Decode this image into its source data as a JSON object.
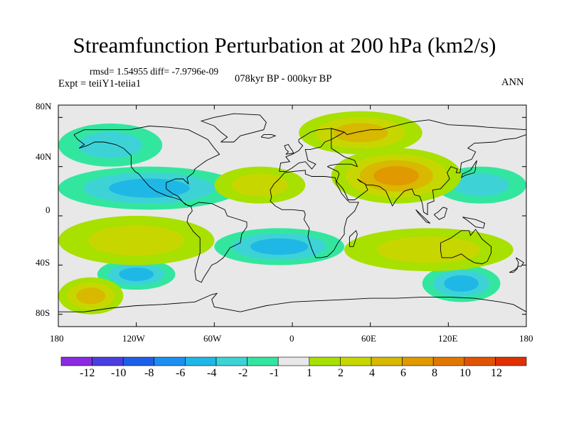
{
  "title": "Streamfunction Perturbation at 200 hPa (km2/s)",
  "stats_text": "rmsd= 1.54955 diff= -7.9796e-09",
  "experiment_text": "Expt = teiiY1-teiia1",
  "period_text": "078kyr BP - 000kyr BP",
  "season_text": "ANN",
  "lat_labels": [
    "80N",
    "40N",
    "0",
    "40S",
    "80S"
  ],
  "lon_labels": [
    "180",
    "120W",
    "60W",
    "0",
    "60E",
    "120E",
    "180"
  ],
  "colorbar": {
    "colors": [
      "#8a2be2",
      "#4b3ee0",
      "#1e5ee8",
      "#1e8ff0",
      "#1fb8e6",
      "#3dd3d6",
      "#33e6a0",
      "#e8e8e8",
      "#a8e000",
      "#c8d600",
      "#d8b800",
      "#e09a00",
      "#e07800",
      "#e05400",
      "#e03000"
    ],
    "labels": [
      "-12",
      "-10",
      "-8",
      "-6",
      "-4",
      "-2",
      "-1",
      "1",
      "2",
      "4",
      "6",
      "8",
      "10",
      "12"
    ]
  },
  "chart_data": {
    "type": "heatmap",
    "title": "Streamfunction Perturbation at 200 hPa (km2/s)",
    "xlim": [
      -180,
      180
    ],
    "ylim": [
      -90,
      90
    ],
    "x_ticks": [
      -180,
      -120,
      -60,
      0,
      60,
      120,
      180
    ],
    "x_tick_labels": [
      "180",
      "120W",
      "60W",
      "0",
      "60E",
      "120E",
      "180"
    ],
    "y_ticks": [
      80,
      40,
      0,
      -40,
      -80
    ],
    "y_tick_labels": [
      "80N",
      "40N",
      "0",
      "40S",
      "80S"
    ],
    "contour_levels": [
      -12,
      -10,
      -8,
      -6,
      -4,
      -2,
      -1,
      1,
      2,
      4,
      6,
      8,
      10,
      12
    ],
    "features": [
      {
        "lon": [
          -180,
          -40
        ],
        "lat": [
          5,
          40
        ],
        "sign": "negative",
        "peak": -4
      },
      {
        "lon": [
          -180,
          -100
        ],
        "lat": [
          40,
          75
        ],
        "sign": "negative",
        "peak": -2
      },
      {
        "lon": [
          -60,
          40
        ],
        "lat": [
          -40,
          -10
        ],
        "sign": "negative",
        "peak": -4
      },
      {
        "lon": [
          -150,
          -90
        ],
        "lat": [
          -60,
          -35
        ],
        "sign": "negative",
        "peak": -4
      },
      {
        "lon": [
          100,
          160
        ],
        "lat": [
          -70,
          -40
        ],
        "sign": "negative",
        "peak": -4
      },
      {
        "lon": [
          110,
          180
        ],
        "lat": [
          10,
          40
        ],
        "sign": "negative",
        "peak": -2
      },
      {
        "lon": [
          -60,
          10
        ],
        "lat": [
          10,
          40
        ],
        "sign": "positive",
        "peak": 2
      },
      {
        "lon": [
          30,
          130
        ],
        "lat": [
          10,
          55
        ],
        "sign": "positive",
        "peak": 6
      },
      {
        "lon": [
          5,
          100
        ],
        "lat": [
          50,
          85
        ],
        "sign": "positive",
        "peak": 4
      },
      {
        "lon": [
          -180,
          -60
        ],
        "lat": [
          -40,
          0
        ],
        "sign": "positive",
        "peak": 2
      },
      {
        "lon": [
          40,
          170
        ],
        "lat": [
          -45,
          -10
        ],
        "sign": "positive",
        "peak": 2
      },
      {
        "lon": [
          -180,
          -130
        ],
        "lat": [
          -80,
          -50
        ],
        "sign": "positive",
        "peak": 4
      }
    ]
  }
}
